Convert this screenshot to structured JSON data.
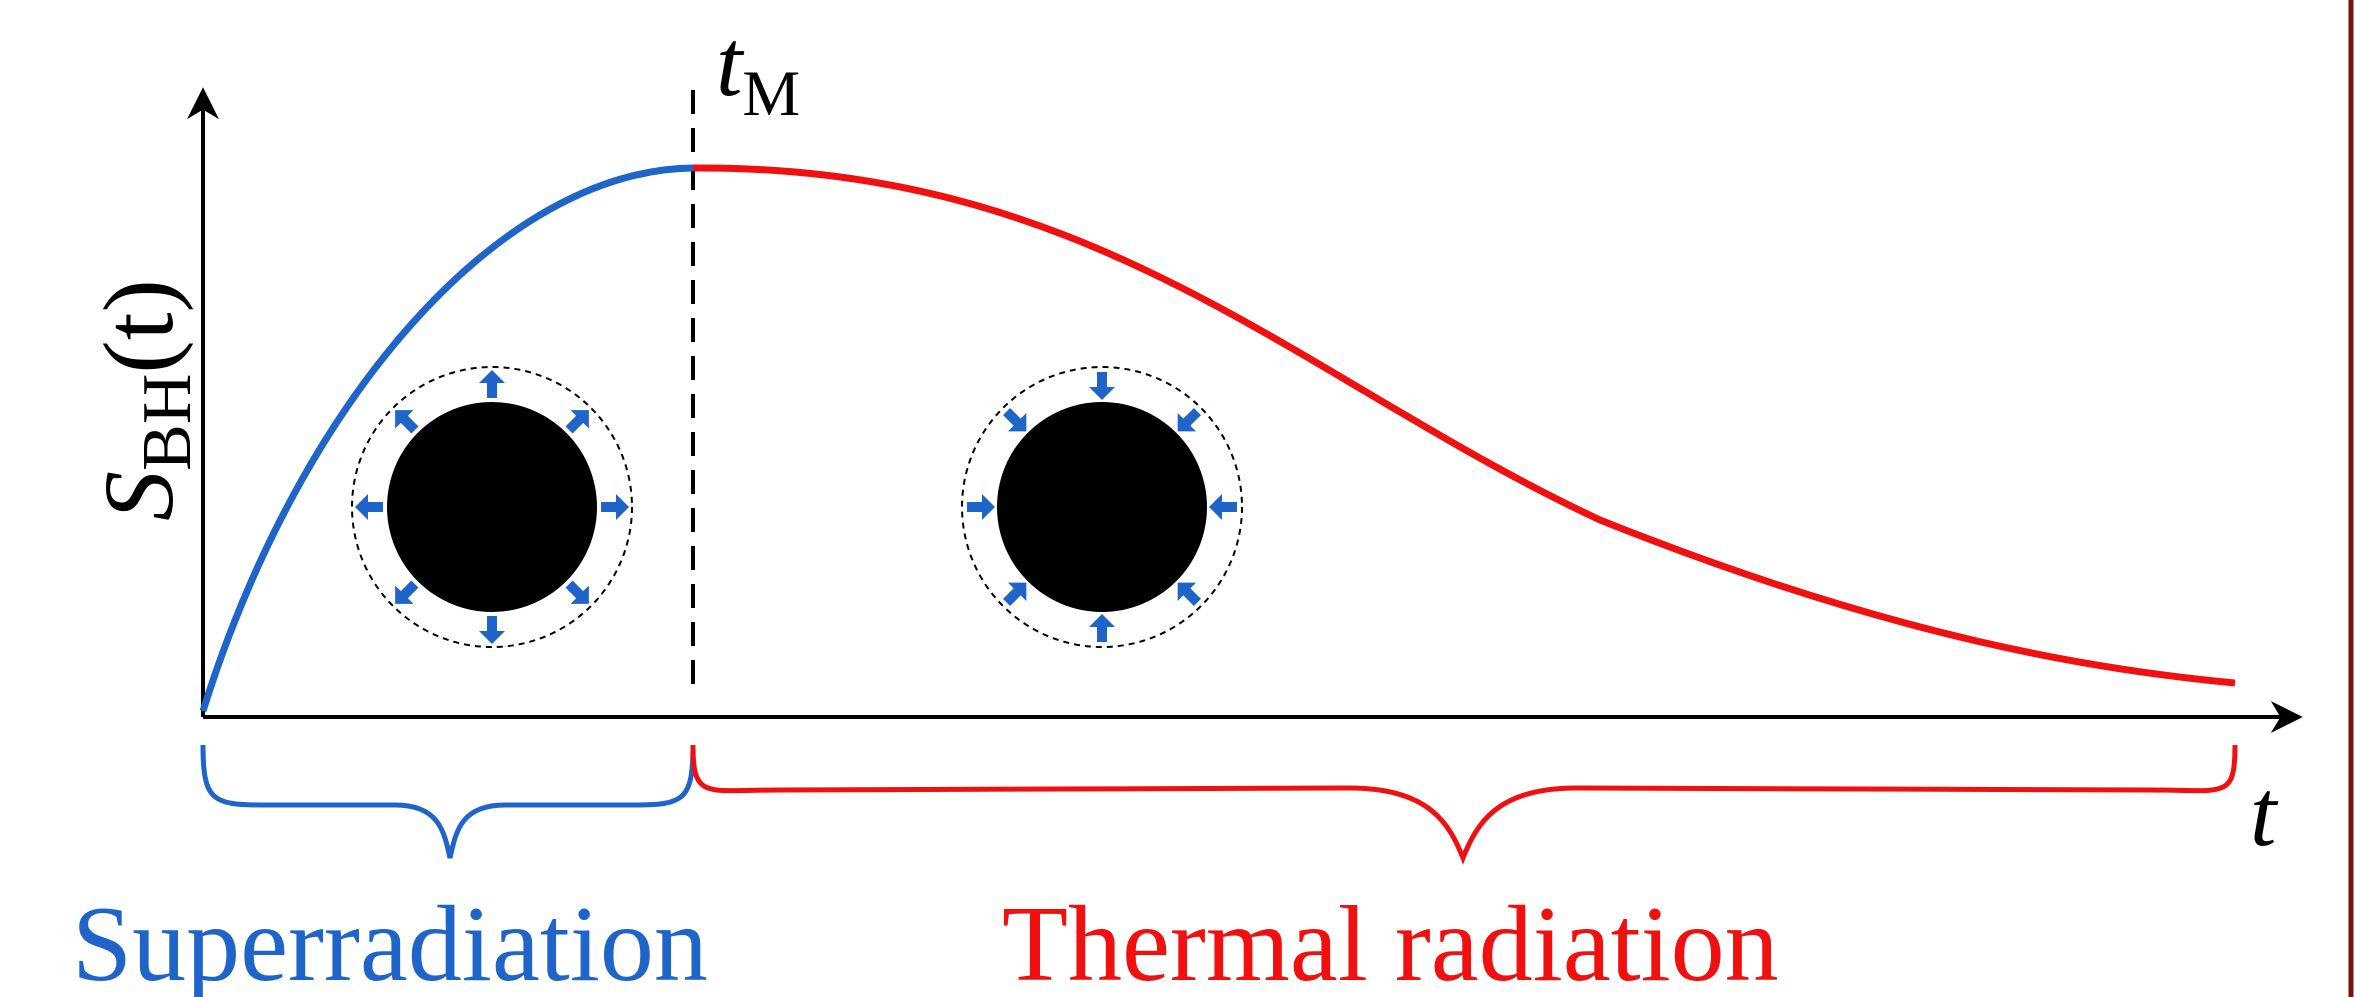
{
  "y_label": {
    "symbol": "S",
    "subscript": "BH",
    "argument": "(t)"
  },
  "marker_label": {
    "symbol": "t",
    "subscript": "M"
  },
  "x_label": "t",
  "phases": [
    {
      "label": "Superradiation"
    },
    {
      "label": "Thermal radiation"
    }
  ]
}
